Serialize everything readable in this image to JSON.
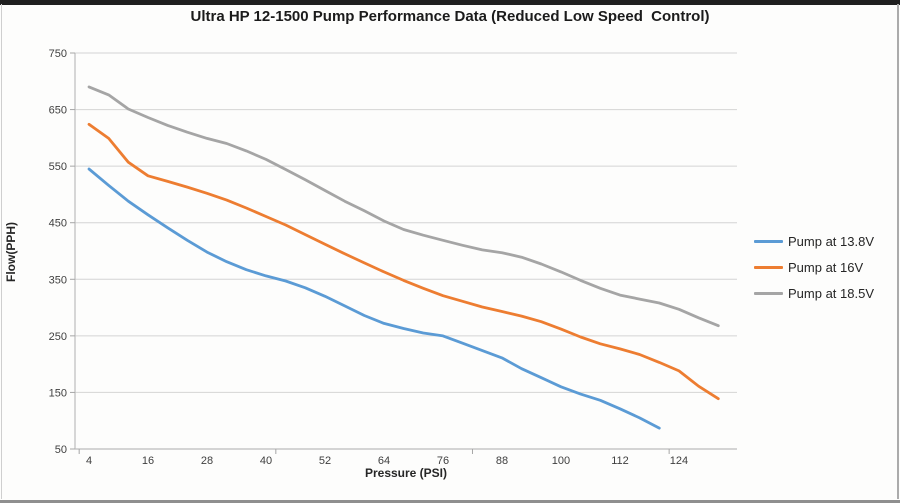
{
  "chart_data": {
    "type": "line",
    "title": "Ultra HP 12-1500 Pump Performance Data (Reduced Low Speed  Control)",
    "xlabel": "Pressure (PSI)",
    "ylabel": "Flow(PPH)",
    "x": [
      4,
      8,
      12,
      16,
      20,
      24,
      28,
      32,
      36,
      40,
      44,
      48,
      52,
      56,
      60,
      64,
      68,
      72,
      76,
      80,
      84,
      88,
      92,
      96,
      100,
      104,
      108,
      112,
      116,
      120,
      124,
      128,
      132
    ],
    "x_tick_labels": [
      "4",
      "16",
      "28",
      "40",
      "52",
      "64",
      "76",
      "88",
      "100",
      "112",
      "124"
    ],
    "ylim": [
      50,
      750
    ],
    "y_tick_step": 100,
    "y_tick_labels": [
      "50",
      "150",
      "250",
      "350",
      "450",
      "550",
      "650",
      "750"
    ],
    "grid": true,
    "legend_position": "right",
    "series": [
      {
        "name": "Pump at 13.8V",
        "color": "#5B9BD5",
        "values": [
          545,
          516,
          488,
          464,
          441,
          419,
          398,
          381,
          367,
          356,
          347,
          335,
          320,
          303,
          286,
          272,
          263,
          255,
          250,
          237,
          224,
          211,
          192,
          176,
          160,
          147,
          136,
          121,
          105,
          87
        ]
      },
      {
        "name": "Pump at 16V",
        "color": "#ED7D31",
        "values": [
          624,
          599,
          557,
          533,
          523,
          513,
          502,
          490,
          476,
          461,
          446,
          429,
          412,
          395,
          379,
          363,
          348,
          334,
          321,
          311,
          301,
          293,
          285,
          275,
          262,
          248,
          236,
          227,
          217,
          203,
          188,
          161,
          139
        ]
      },
      {
        "name": "Pump at 18.5V",
        "color": "#A5A5A5",
        "values": [
          690,
          676,
          651,
          636,
          622,
          610,
          599,
          590,
          577,
          562,
          544,
          526,
          507,
          488,
          471,
          453,
          438,
          428,
          419,
          410,
          402,
          397,
          389,
          377,
          363,
          348,
          334,
          322,
          315,
          308,
          297,
          282,
          268
        ]
      }
    ]
  },
  "style_colors": {
    "gridline": "#d4d4d4",
    "axis_line": "#bdbdbd",
    "tick_mark": "#a6a6a6",
    "tick_label": "#3f3f3f"
  }
}
